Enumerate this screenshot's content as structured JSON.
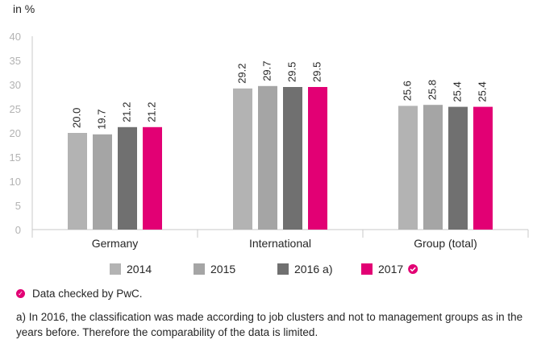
{
  "chart_data": {
    "type": "bar",
    "unit_label": "in %",
    "categories": [
      "Germany",
      "International",
      "Group (total)"
    ],
    "series": [
      {
        "name": "2014",
        "values": [
          20.0,
          29.2,
          25.6
        ],
        "color": "#b3b3b3"
      },
      {
        "name": "2015",
        "values": [
          19.7,
          29.7,
          25.8
        ],
        "color": "#a5a5a5"
      },
      {
        "name": "2016 a)",
        "values": [
          21.2,
          29.5,
          25.4
        ],
        "color": "#707070"
      },
      {
        "name": "2017",
        "values": [
          21.2,
          29.5,
          25.4
        ],
        "color": "#e20074",
        "checked": true
      }
    ],
    "ylim": [
      0,
      40
    ],
    "yticks": [
      0,
      5,
      10,
      15,
      20,
      25,
      30,
      35,
      40
    ],
    "grid": false,
    "legend_position": "bottom"
  },
  "notes": {
    "pwc": "Data checked by PwC.",
    "footnote": "a) In 2016, the classification was made according to job clusters and not to management groups as in the years before. Therefore the comparability of the data is limited."
  },
  "colors": {
    "accent": "#e20074",
    "axis": "#c8c8c8",
    "tick_text": "#b3b3b3"
  }
}
